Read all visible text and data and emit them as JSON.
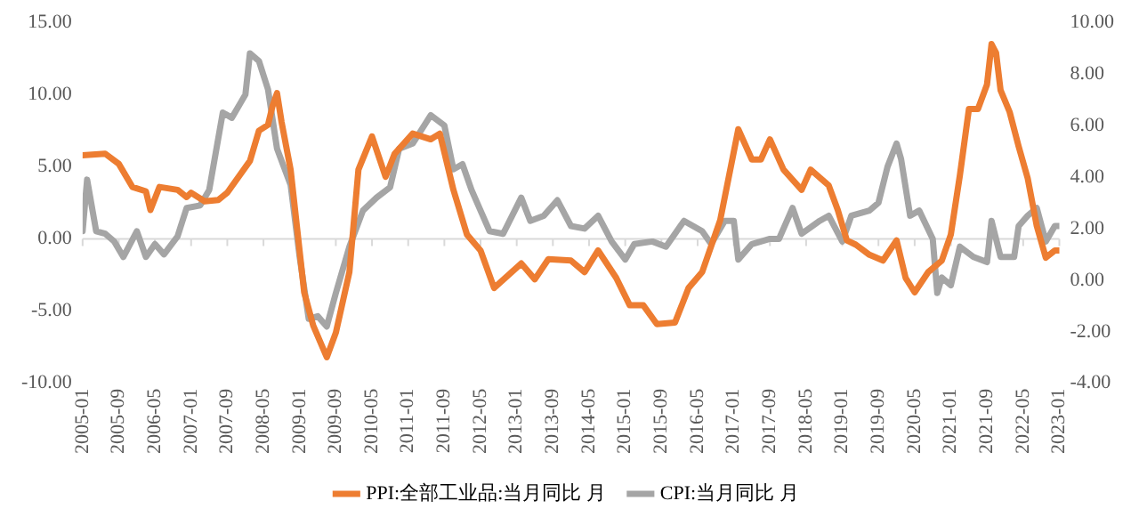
{
  "chart_data": {
    "type": "line",
    "legend": "bottom",
    "grid": false,
    "marker": "none",
    "line_style": "solid",
    "ref_lines": [
      {
        "axis": "y",
        "value": 0,
        "color": "#d9d9d9"
      }
    ],
    "xlim": [
      "2005-01",
      "2023-01"
    ],
    "xticks": [
      "2005-01",
      "2005-09",
      "2006-05",
      "2007-01",
      "2007-09",
      "2008-05",
      "2009-01",
      "2009-09",
      "2010-05",
      "2011-01",
      "2011-09",
      "2012-05",
      "2013-01",
      "2013-09",
      "2014-05",
      "2015-01",
      "2015-09",
      "2016-05",
      "2017-01",
      "2017-09",
      "2018-05",
      "2019-01",
      "2019-09",
      "2020-05",
      "2021-01",
      "2021-09",
      "2022-05",
      "2023-01"
    ],
    "ylim": [
      -10,
      15
    ],
    "yticks": [
      {
        "value": -10,
        "label": "-10.00"
      },
      {
        "value": -5,
        "label": "-5.00"
      },
      {
        "value": 0,
        "label": "0.00"
      },
      {
        "value": 5,
        "label": "5.00"
      },
      {
        "value": 10,
        "label": "10.00"
      },
      {
        "value": 15,
        "label": "15.00"
      }
    ],
    "y2lim": [
      -4,
      10
    ],
    "y2ticks": [
      {
        "value": -4,
        "label": "-4.00"
      },
      {
        "value": -2,
        "label": "-2.00"
      },
      {
        "value": 0,
        "label": "0.00"
      },
      {
        "value": 2,
        "label": "2.00"
      },
      {
        "value": 4,
        "label": "4.00"
      },
      {
        "value": 6,
        "label": "6.00"
      },
      {
        "value": 8,
        "label": "8.00"
      },
      {
        "value": 10,
        "label": "10.00"
      }
    ],
    "series": [
      {
        "name": "PPI:全部工业品:当月同比 月",
        "color": "#ed7d31",
        "x": [
          "2005-01",
          "2005-06",
          "2005-09",
          "2005-12",
          "2006-03",
          "2006-04",
          "2006-06",
          "2006-10",
          "2006-12",
          "2007-01",
          "2007-04",
          "2007-07",
          "2007-09",
          "2008-02",
          "2008-04",
          "2008-06",
          "2008-07",
          "2008-08",
          "2008-09",
          "2008-11",
          "2009-02",
          "2009-04",
          "2009-07",
          "2009-09",
          "2009-12",
          "2010-02",
          "2010-05",
          "2010-08",
          "2010-10",
          "2011-02",
          "2011-06",
          "2011-08",
          "2011-11",
          "2012-02",
          "2012-05",
          "2012-08",
          "2013-02",
          "2013-05",
          "2013-08",
          "2014-01",
          "2014-04",
          "2014-07",
          "2014-11",
          "2015-02",
          "2015-05",
          "2015-08",
          "2015-12",
          "2016-03",
          "2016-06",
          "2016-10",
          "2017-02",
          "2017-05",
          "2017-07",
          "2017-09",
          "2017-12",
          "2018-04",
          "2018-06",
          "2018-10",
          "2018-12",
          "2019-02",
          "2019-04",
          "2019-07",
          "2019-10",
          "2020-01",
          "2020-03",
          "2020-05",
          "2020-08",
          "2020-11",
          "2021-01",
          "2021-03",
          "2021-05",
          "2021-07",
          "2021-09",
          "2021-10",
          "2021-11",
          "2021-12",
          "2022-02",
          "2022-04",
          "2022-06",
          "2022-08",
          "2022-10",
          "2022-12",
          "2023-01"
        ],
        "values": [
          5.8,
          5.9,
          5.2,
          3.6,
          3.3,
          2.0,
          3.6,
          3.4,
          2.9,
          3.2,
          2.6,
          2.7,
          3.2,
          5.4,
          7.5,
          7.9,
          9.2,
          10.1,
          8.1,
          4.8,
          -3.7,
          -6.0,
          -8.2,
          -6.5,
          -2.3,
          4.8,
          7.1,
          4.3,
          5.9,
          7.3,
          6.9,
          7.3,
          3.4,
          0.3,
          -0.8,
          -3.4,
          -1.7,
          -2.8,
          -1.4,
          -1.5,
          -2.3,
          -0.8,
          -2.7,
          -4.6,
          -4.6,
          -5.9,
          -5.8,
          -3.4,
          -2.3,
          1.3,
          7.6,
          5.5,
          5.5,
          6.9,
          4.8,
          3.4,
          4.8,
          3.7,
          2.0,
          -0.1,
          -0.4,
          -1.1,
          -1.5,
          -0.1,
          -2.7,
          -3.7,
          -2.3,
          -1.5,
          0.3,
          4.4,
          9.0,
          9.0,
          10.7,
          13.5,
          12.9,
          10.3,
          8.8,
          6.4,
          4.2,
          0.9,
          -1.3,
          -0.8,
          -0.8
        ]
      },
      {
        "name": "CPI:当月同比 月",
        "color": "#a5a5a5",
        "axis": "y2",
        "x": [
          "2005-01",
          "2005-02",
          "2005-04",
          "2005-06",
          "2005-08",
          "2005-10",
          "2006-01",
          "2006-03",
          "2006-05",
          "2006-07",
          "2006-10",
          "2006-12",
          "2007-03",
          "2007-05",
          "2007-08",
          "2007-10",
          "2007-12",
          "2008-01",
          "2008-02",
          "2008-04",
          "2008-06",
          "2008-08",
          "2008-11",
          "2009-01",
          "2009-03",
          "2009-05",
          "2009-07",
          "2009-09",
          "2009-12",
          "2010-03",
          "2010-06",
          "2010-09",
          "2010-11",
          "2011-02",
          "2011-06",
          "2011-09",
          "2011-11",
          "2012-01",
          "2012-03",
          "2012-05",
          "2012-07",
          "2012-10",
          "2012-12",
          "2013-02",
          "2013-04",
          "2013-07",
          "2013-10",
          "2014-01",
          "2014-04",
          "2014-07",
          "2014-10",
          "2015-01",
          "2015-03",
          "2015-07",
          "2015-10",
          "2016-02",
          "2016-06",
          "2016-08",
          "2016-11",
          "2017-01",
          "2017-02",
          "2017-05",
          "2017-09",
          "2017-11",
          "2018-02",
          "2018-04",
          "2018-08",
          "2018-10",
          "2019-01",
          "2019-03",
          "2019-07",
          "2019-09",
          "2019-11",
          "2020-01",
          "2020-02",
          "2020-04",
          "2020-06",
          "2020-09",
          "2020-10",
          "2020-11",
          "2021-01",
          "2021-03",
          "2021-06",
          "2021-09",
          "2021-10",
          "2021-12",
          "2022-03",
          "2022-04",
          "2022-06",
          "2022-08",
          "2022-10",
          "2022-12",
          "2023-01"
        ],
        "values": [
          1.9,
          3.9,
          1.9,
          1.8,
          1.5,
          0.9,
          1.9,
          0.9,
          1.4,
          1.0,
          1.7,
          2.8,
          2.9,
          3.5,
          6.5,
          6.3,
          6.9,
          7.2,
          8.8,
          8.5,
          7.4,
          5.1,
          3.7,
          0.9,
          -1.5,
          -1.4,
          -1.8,
          -0.5,
          1.3,
          2.7,
          3.2,
          3.6,
          5.1,
          5.3,
          6.4,
          6.0,
          4.3,
          4.5,
          3.5,
          2.7,
          1.9,
          1.8,
          2.5,
          3.2,
          2.3,
          2.5,
          3.1,
          2.1,
          2.0,
          2.5,
          1.5,
          0.8,
          1.4,
          1.5,
          1.3,
          2.3,
          1.9,
          1.4,
          2.3,
          2.3,
          0.8,
          1.4,
          1.6,
          1.6,
          2.8,
          1.8,
          2.3,
          2.5,
          1.5,
          2.5,
          2.7,
          3.0,
          4.4,
          5.3,
          4.7,
          2.5,
          2.7,
          1.6,
          -0.5,
          0.1,
          -0.2,
          1.3,
          0.9,
          0.7,
          2.3,
          0.9,
          0.9,
          2.1,
          2.5,
          2.8,
          1.5,
          2.1,
          2.1
        ]
      }
    ]
  }
}
